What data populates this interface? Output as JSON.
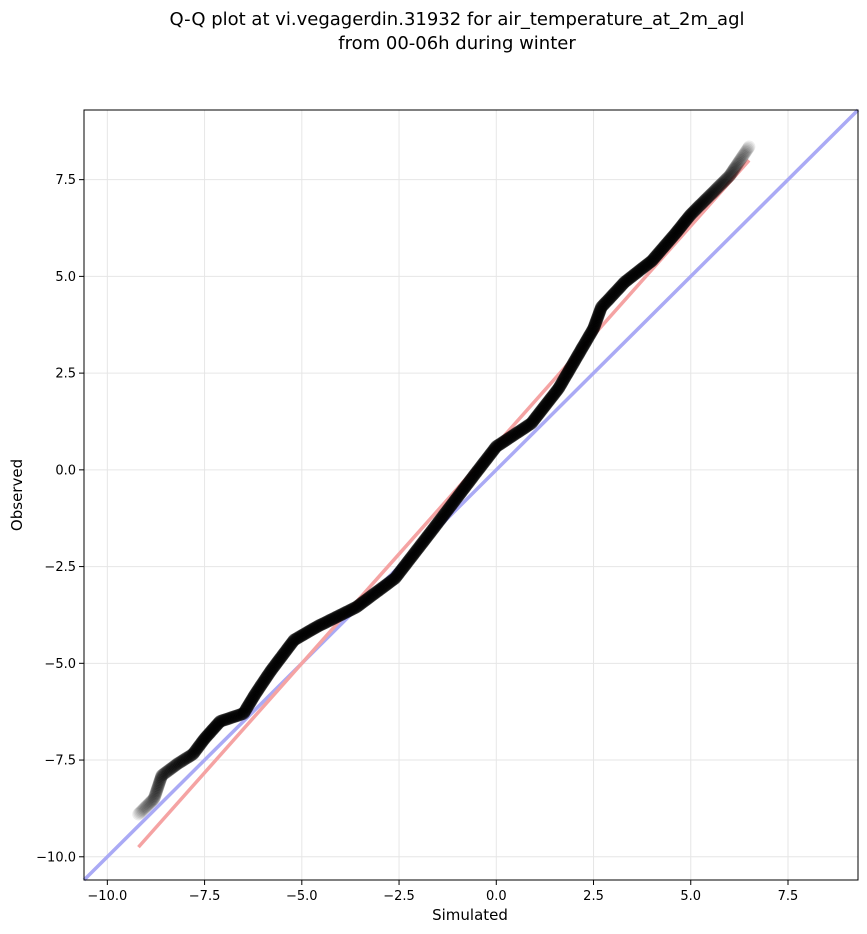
{
  "chart_data": {
    "type": "scatter",
    "title_lines": [
      "Q-Q plot at vi.vegagerdin.31932 for air_temperature_at_2m_agl",
      "from 00-06h during winter"
    ],
    "xlabel": "Simulated",
    "ylabel": "Observed",
    "xlim": [
      -10.6,
      9.3
    ],
    "ylim": [
      -10.6,
      9.3
    ],
    "x_ticks": [
      -10.0,
      -7.5,
      -5.0,
      -2.5,
      0.0,
      2.5,
      5.0,
      7.5
    ],
    "y_ticks": [
      -10.0,
      -7.5,
      -5.0,
      -2.5,
      0.0,
      2.5,
      5.0,
      7.5
    ],
    "x_tick_labels": [
      "−10.0",
      "−7.5",
      "−5.0",
      "−2.5",
      "0.0",
      "2.5",
      "5.0",
      "7.5"
    ],
    "y_tick_labels": [
      "−10.0",
      "−7.5",
      "−5.0",
      "−2.5",
      "0.0",
      "2.5",
      "5.0",
      "7.5"
    ],
    "grid": true,
    "colors": {
      "points": "#000000",
      "identity_line": "#aaaaf5",
      "fit_line": "#f5a3a3",
      "grid": "#e6e6e6"
    },
    "identity_line": [
      [
        -10.6,
        -10.6
      ],
      [
        9.3,
        9.3
      ]
    ],
    "fit_line": [
      [
        -9.2,
        -9.75
      ],
      [
        6.5,
        8.0
      ]
    ],
    "quantile_path": [
      [
        -9.2,
        -8.9
      ],
      [
        -8.8,
        -8.5
      ],
      [
        -8.6,
        -7.9
      ],
      [
        -8.2,
        -7.6
      ],
      [
        -7.8,
        -7.35
      ],
      [
        -7.5,
        -6.95
      ],
      [
        -7.1,
        -6.5
      ],
      [
        -6.5,
        -6.3
      ],
      [
        -6.2,
        -5.8
      ],
      [
        -5.8,
        -5.2
      ],
      [
        -5.2,
        -4.4
      ],
      [
        -4.6,
        -4.05
      ],
      [
        -3.6,
        -3.55
      ],
      [
        -2.6,
        -2.8
      ],
      [
        -1.6,
        -1.5
      ],
      [
        -0.5,
        -0.05
      ],
      [
        0.0,
        0.6
      ],
      [
        0.9,
        1.2
      ],
      [
        1.6,
        2.1
      ],
      [
        2.5,
        3.65
      ],
      [
        2.7,
        4.2
      ],
      [
        3.3,
        4.85
      ],
      [
        4.0,
        5.4
      ],
      [
        4.6,
        6.1
      ],
      [
        5.0,
        6.6
      ],
      [
        5.6,
        7.2
      ],
      [
        6.0,
        7.6
      ],
      [
        6.2,
        7.9
      ],
      [
        6.5,
        8.35
      ]
    ]
  }
}
